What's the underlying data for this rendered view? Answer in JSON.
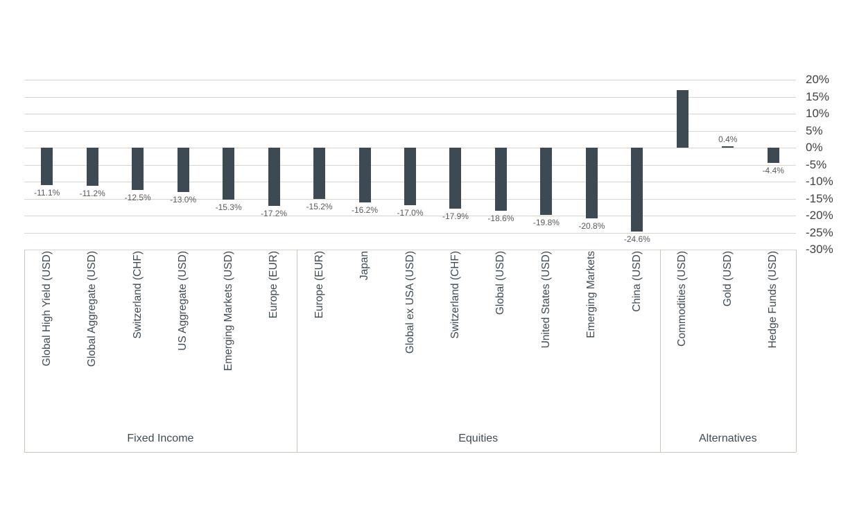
{
  "chart_data": {
    "type": "bar",
    "title": "",
    "xlabel": "",
    "ylabel": "",
    "ylim": [
      -30,
      20
    ],
    "ytick_step": 5,
    "ytick_labels": [
      "20%",
      "15%",
      "10%",
      "5%",
      "0%",
      "-5%",
      "-10%",
      "-15%",
      "-20%",
      "-25%",
      "-30%"
    ],
    "grid": true,
    "legend": "none",
    "bar_color": "#3d4a53",
    "gridline_color": "#d9d5c9",
    "box_line_color": "#c8c5ba",
    "data_label_color": "#595959",
    "groups": [
      {
        "name": "Fixed Income",
        "items": [
          {
            "category": "Global High Yield (USD)",
            "value": -11.1,
            "label": "-11.1%"
          },
          {
            "category": "Global Aggregate (USD)",
            "value": -11.2,
            "label": "-11.2%"
          },
          {
            "category": "Switzerland (CHF)",
            "value": -12.5,
            "label": "-12.5%"
          },
          {
            "category": "US Aggregate (USD)",
            "value": -13.0,
            "label": "-13.0%"
          },
          {
            "category": "Emerging Markets (USD)",
            "value": -15.3,
            "label": "-15.3%"
          },
          {
            "category": "Europe (EUR)",
            "value": -17.2,
            "label": "-17.2%"
          }
        ]
      },
      {
        "name": "Equities",
        "items": [
          {
            "category": "Europe (EUR)",
            "value": -15.2,
            "label": "-15.2%"
          },
          {
            "category": "Japan",
            "value": -16.2,
            "label": "-16.2%"
          },
          {
            "category": "Global ex USA (USD)",
            "value": -17.0,
            "label": "-17.0%"
          },
          {
            "category": "Switzerland (CHF)",
            "value": -17.9,
            "label": "-17.9%"
          },
          {
            "category": "Global (USD)",
            "value": -18.6,
            "label": "-18.6%"
          },
          {
            "category": "United States (USD)",
            "value": -19.8,
            "label": "-19.8%"
          },
          {
            "category": "Emerging Markets",
            "value": -20.8,
            "label": "-20.8%"
          },
          {
            "category": "China (USD)",
            "value": -24.6,
            "label": "-24.6%"
          }
        ]
      },
      {
        "name": "Alternatives",
        "items": [
          {
            "category": "Commodities (USD)",
            "value": 16.9,
            "label": ""
          },
          {
            "category": "Gold (USD)",
            "value": 0.4,
            "label": "0.4%"
          },
          {
            "category": "Hedge Funds (USD)",
            "value": -4.4,
            "label": "-4.4%"
          }
        ]
      }
    ]
  },
  "layout_note": ""
}
